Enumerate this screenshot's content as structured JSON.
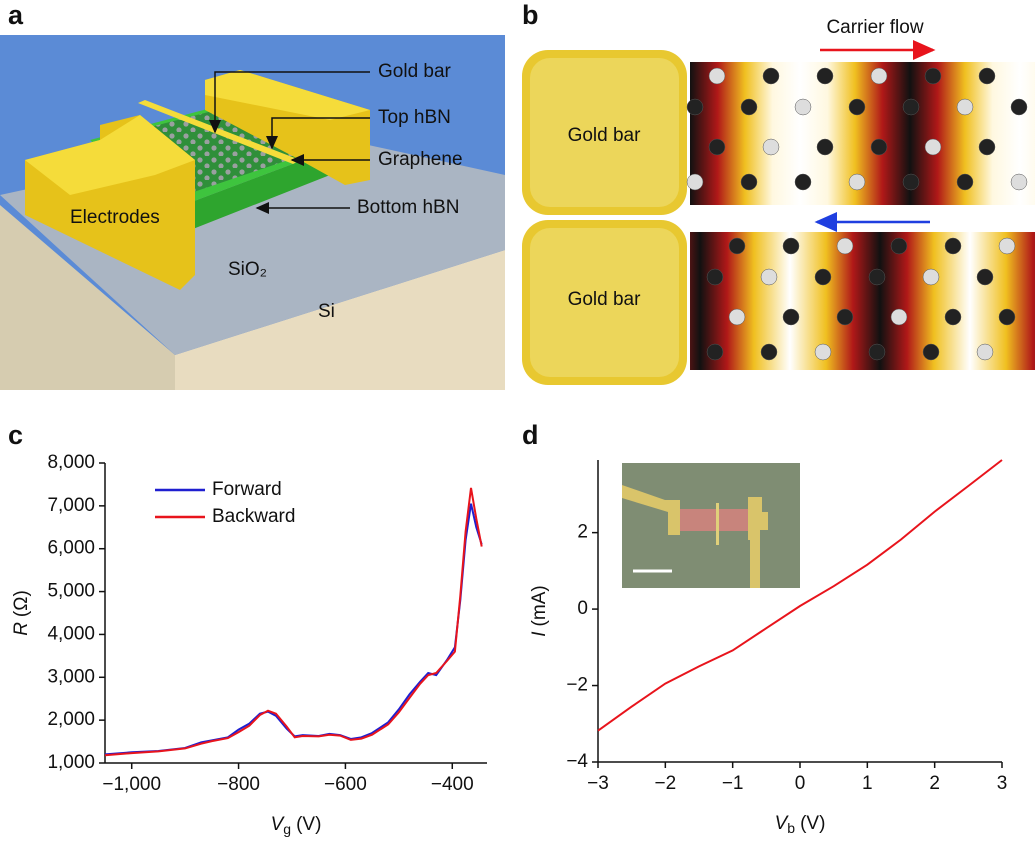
{
  "panels": [
    "a",
    "b",
    "c",
    "d"
  ],
  "panel_a": {
    "gold_bar": "Gold bar",
    "top_hbn": "Top hBN",
    "graphene": "Graphene",
    "bottom_hbn": "Bottom hBN",
    "electrodes": "Electrodes",
    "sio2": "SiO₂",
    "si": "Si"
  },
  "panel_b": {
    "carrier_flow": "Carrier flow",
    "gold_bar_top": "Gold bar",
    "gold_bar_bottom": "Gold bar"
  },
  "chart_data": [
    {
      "type": "line",
      "x_label_var": "V",
      "x_label_sub": "g",
      "x_label_unit": "(V)",
      "y_label_var": "R",
      "y_label_unit": "(Ω)",
      "xlim": [
        -1050,
        -335
      ],
      "ylim": [
        1000,
        8000
      ],
      "xticks": [
        {
          "value": -1000,
          "label": "−1,000"
        },
        {
          "value": -800,
          "label": "−800"
        },
        {
          "value": -600,
          "label": "−600"
        },
        {
          "value": -400,
          "label": "−400"
        }
      ],
      "yticks": [
        {
          "value": 1000,
          "label": "1,000"
        },
        {
          "value": 2000,
          "label": "2,000"
        },
        {
          "value": 3000,
          "label": "3,000"
        },
        {
          "value": 4000,
          "label": "4,000"
        },
        {
          "value": 5000,
          "label": "5,000"
        },
        {
          "value": 6000,
          "label": "6,000"
        },
        {
          "value": 7000,
          "label": "7,000"
        },
        {
          "value": 8000,
          "label": "8,000"
        }
      ],
      "legend": "upper left",
      "x": [
        -1050,
        -1000,
        -950,
        -900,
        -870,
        -850,
        -820,
        -800,
        -780,
        -760,
        -745,
        -730,
        -710,
        -695,
        -680,
        -650,
        -630,
        -610,
        -590,
        -570,
        -550,
        -520,
        -500,
        -480,
        -460,
        -445,
        -430,
        -410,
        -395,
        -385,
        -375,
        -365,
        -355,
        -345
      ],
      "series": [
        {
          "name": "Forward",
          "color": "#1f1fd0",
          "values": [
            1200,
            1250,
            1280,
            1350,
            1480,
            1530,
            1600,
            1780,
            1920,
            2150,
            2200,
            2100,
            1800,
            1620,
            1650,
            1630,
            1680,
            1650,
            1560,
            1600,
            1700,
            1950,
            2250,
            2600,
            2900,
            3100,
            3050,
            3400,
            3700,
            4800,
            6200,
            7050,
            6500,
            6100
          ]
        },
        {
          "name": "Backward",
          "color": "#e8141c",
          "values": [
            1180,
            1230,
            1270,
            1340,
            1450,
            1510,
            1580,
            1720,
            1870,
            2120,
            2220,
            2150,
            1850,
            1600,
            1630,
            1620,
            1660,
            1640,
            1540,
            1570,
            1660,
            1900,
            2180,
            2520,
            2850,
            3050,
            3100,
            3380,
            3600,
            4900,
            6400,
            7420,
            6700,
            6050
          ]
        }
      ]
    },
    {
      "type": "line",
      "x_label_var": "V",
      "x_label_sub": "b",
      "x_label_unit": "(V)",
      "y_label_var": "I",
      "y_label_unit": "(mA)",
      "xlim": [
        -3,
        3
      ],
      "ylim": [
        -4,
        3.9
      ],
      "xticks": [
        {
          "value": -3,
          "label": "−3"
        },
        {
          "value": -2,
          "label": "−2"
        },
        {
          "value": -1,
          "label": "−1"
        },
        0,
        1,
        2,
        3
      ],
      "yticks": [
        {
          "value": -4,
          "label": "−4"
        },
        {
          "value": -2,
          "label": "−2"
        },
        0,
        2
      ],
      "x": [
        -3,
        -2.5,
        -2,
        -1.5,
        -1,
        -0.5,
        0,
        0.5,
        1,
        1.5,
        2,
        2.5,
        3
      ],
      "series": [
        {
          "name": null,
          "color": "#e8141c",
          "values": [
            -3.18,
            -2.55,
            -1.95,
            -1.5,
            -1.08,
            -0.5,
            0.08,
            0.6,
            1.16,
            1.82,
            2.55,
            3.22,
            3.9
          ]
        }
      ]
    }
  ]
}
